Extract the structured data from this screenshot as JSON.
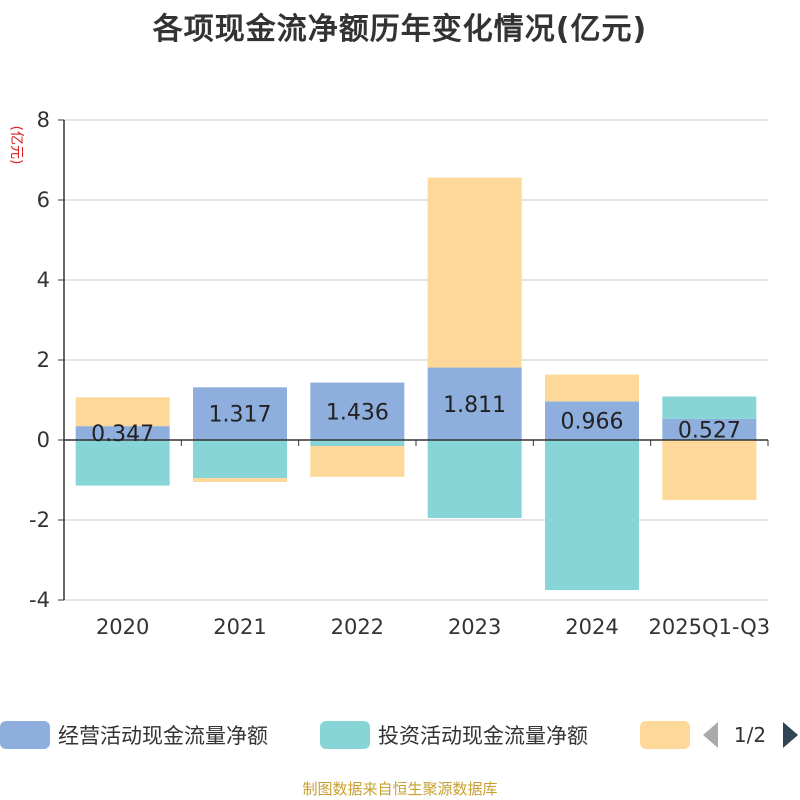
{
  "chart_data": {
    "type": "bar",
    "stacked": true,
    "title": "各项现金流净额历年变化情况(亿元)",
    "ylabel": "(亿元)",
    "xlabel": "",
    "categories": [
      "2020",
      "2021",
      "2022",
      "2023",
      "2024",
      "2025Q1-Q3"
    ],
    "ylim": [
      -4,
      8
    ],
    "yticks": [
      -4,
      -2,
      0,
      2,
      4,
      6,
      8
    ],
    "grid": true,
    "series": [
      {
        "name": "经营活动现金流量净额",
        "color": "#8eaedd",
        "values": [
          0.347,
          1.317,
          1.436,
          1.811,
          0.966,
          0.527
        ],
        "labels": [
          "0.347",
          "1.317",
          "1.436",
          "1.811",
          "0.966",
          "0.527"
        ]
      },
      {
        "name": "投资活动现金流量净额",
        "color": "#88d5d8",
        "values": [
          -1.14,
          -0.95,
          -0.15,
          -1.95,
          -3.75,
          0.56
        ]
      },
      {
        "name": "",
        "color": "#fdd898",
        "values": [
          0.72,
          -0.1,
          -0.77,
          4.75,
          0.67,
          -1.5
        ]
      }
    ],
    "legend": {
      "placement": "bottom",
      "page": "1/2",
      "items": [
        "经营活动现金流量净额",
        "投资活动现金流量净额",
        ""
      ]
    }
  },
  "footer": "制图数据来自恒生聚源数据库"
}
